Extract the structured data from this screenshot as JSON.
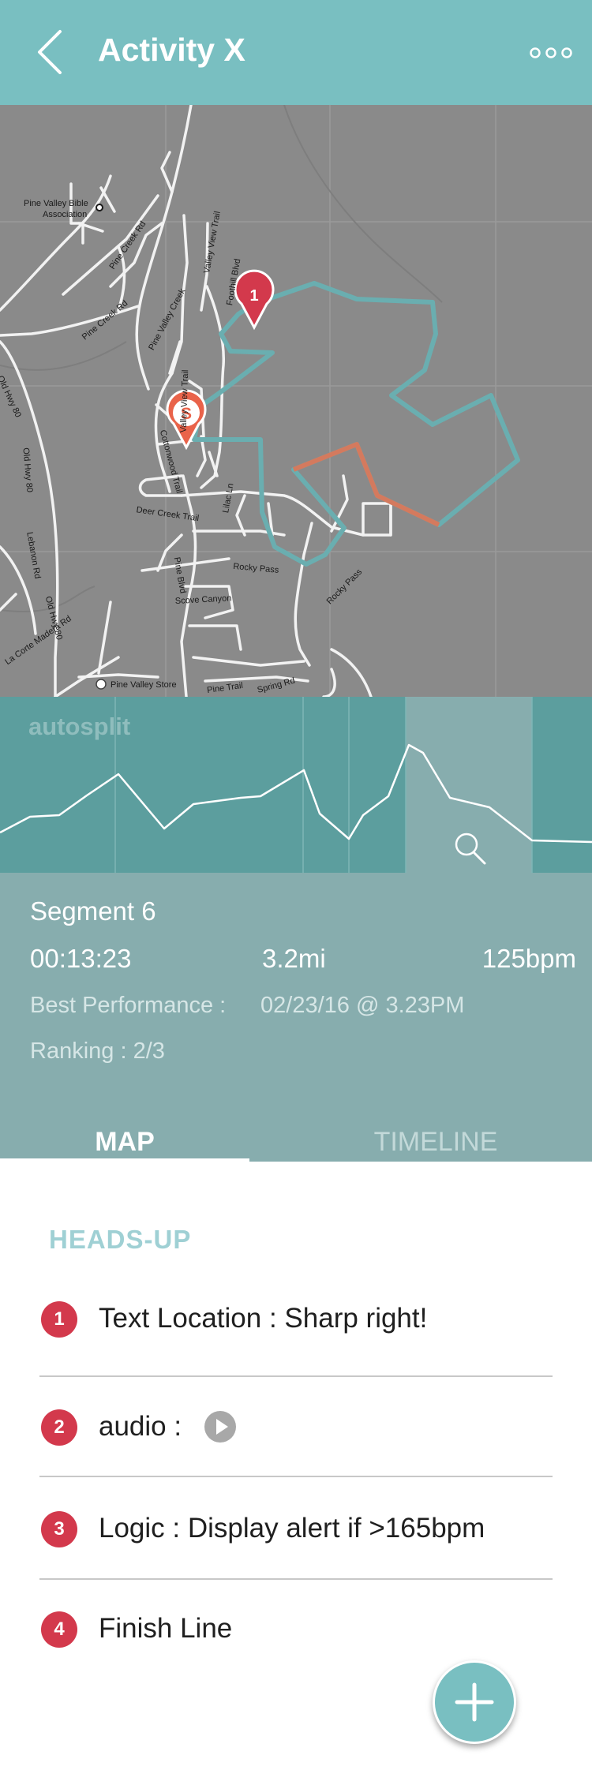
{
  "header": {
    "title": "Activity X",
    "back_icon": "chevron-left-icon",
    "more_icon": "more-dots-icon"
  },
  "map": {
    "labels": {
      "bible_assoc_1": "Pine Valley Bible",
      "bible_assoc_2": "Association",
      "pine_creek_rd_1": "Pine Creek Rd",
      "pine_creek_rd_2": "Pine Creek Rd",
      "pine_valley_creek": "Pine Valley Creek",
      "valley_view_trail_1": "Valley View Trail",
      "valley_view_trail_2": "Valley View Trail",
      "foothill_blvd": "Foothill Blvd",
      "old_hwy_80_1": "Old Hwy 80",
      "old_hwy_80_2": "Old Hwy 80",
      "old_hwy_80_3": "Old Hwy 80",
      "lebanon_rd": "Lebanon Rd",
      "deer_creek_trail": "Deer Creek Trail",
      "lilac_ln": "Lilac Ln",
      "pine_blvd": "Pine Blvd",
      "rocky_pass_1": "Rocky Pass",
      "rocky_pass_2": "Rocky Pass",
      "scove_canyon": "Scove Canyon",
      "cottonwood_trail": "Cottonwood Trail",
      "la_corte_madera": "La Corte Madera Rd",
      "pine_valley_store": "Pine Valley Store",
      "pine_trail": "Pine Trail",
      "spring_rd": "Spring Rd"
    },
    "markers": {
      "waypoint_1": "1",
      "start": "S"
    },
    "colors": {
      "route": "#6aaeb0",
      "segment": "#d47a5e",
      "waypoint_marker": "#d3394c",
      "start_marker": "#e9634a"
    }
  },
  "elevation_chart": {
    "label": "autosplit",
    "zoom_icon": "search-icon"
  },
  "segment": {
    "title": "Segment 6",
    "time": "00:13:23",
    "distance": "3.2mi",
    "heart_rate": "125bpm",
    "best_label": "Best Performance :",
    "best_value": "02/23/16 @ 3.23PM",
    "ranking": "Ranking : 2/3"
  },
  "tabs": {
    "map": "MAP",
    "timeline": "TIMELINE",
    "active": "MAP"
  },
  "heads_up": {
    "title": "HEADS-UP",
    "items": [
      {
        "number": "1",
        "text": "Text Location : Sharp right!"
      },
      {
        "number": "2",
        "text": "audio :",
        "icon": "play-icon"
      },
      {
        "number": "3",
        "text": "Logic : Display alert if >165bpm"
      },
      {
        "number": "4",
        "text": "Finish Line"
      }
    ]
  },
  "fab": {
    "icon": "plus-icon"
  }
}
